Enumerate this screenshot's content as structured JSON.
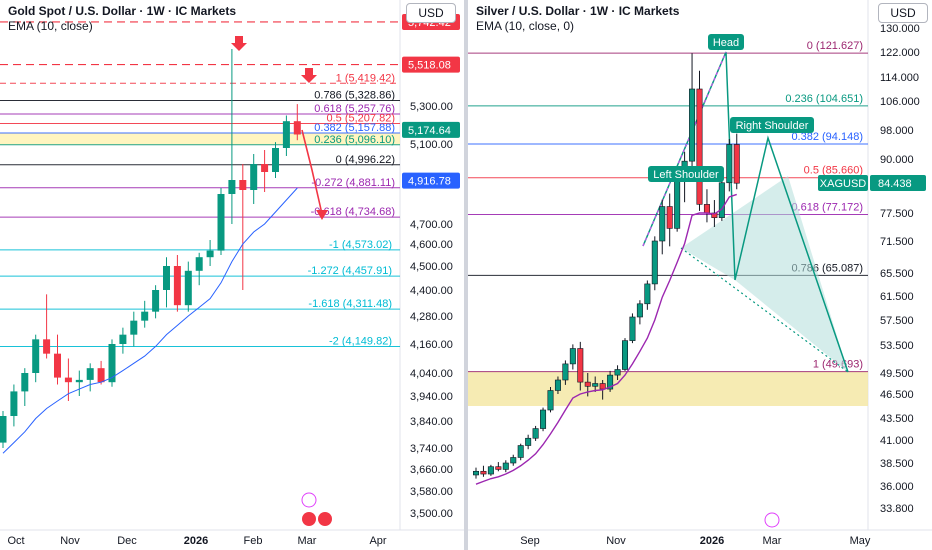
{
  "charts": {
    "gold": {
      "title": "Gold Spot / U.S. Dollar · 1W · IC Markets",
      "indicator": "EMA (10, close)",
      "currency": "USD",
      "axis_ticks": [
        "5,300.00",
        "5,100.00",
        "4,700.00",
        "4,600.00",
        "4,500.00",
        "4,400.00",
        "4,280.00",
        "4,160.00",
        "4,040.00",
        "3,940.00",
        "3,840.00",
        "3,740.00",
        "3,660.00",
        "3,580.00",
        "3,500.00"
      ],
      "x_labels": [
        "Oct",
        "Nov",
        "Dec",
        "2026",
        "Feb",
        "Mar",
        "Apr"
      ],
      "price_tags": [
        {
          "label": "5,742.42",
          "color": "#f23645",
          "v": 5742.42
        },
        {
          "label": "5,518.08",
          "color": "#f23645",
          "v": 5518.08
        },
        {
          "label": "5,174.64",
          "color": "#089981",
          "v": 5174.64
        },
        {
          "label": "4,916.78",
          "color": "#2962ff",
          "v": 4916.78
        }
      ],
      "fib_labels": [
        {
          "text": "1 (5,419.42)",
          "color": "#f23645",
          "v": 5419.42
        },
        {
          "text": "0.786 (5,328.86)",
          "color": "#131722",
          "v": 5328.86
        },
        {
          "text": "0.618 (5,257.76)",
          "color": "#9c27b0",
          "v": 5257.76
        },
        {
          "text": "0.5 (5,207.82)",
          "color": "#f23645",
          "v": 5207.82
        },
        {
          "text": "0.382 (5,157.88)",
          "color": "#2962ff",
          "v": 5157.88
        },
        {
          "text": "0.236 (5,096.10)",
          "color": "#089981",
          "v": 5096.1
        },
        {
          "text": "0 (4,996.22)",
          "color": "#131722",
          "v": 4996.22
        },
        {
          "text": "-0.272 (4,881.11)",
          "color": "#9c27b0",
          "v": 4881.11
        },
        {
          "text": "-0.618 (4,734.68)",
          "color": "#9c27b0",
          "v": 4734.68
        },
        {
          "text": "-1 (4,573.02)",
          "color": "#00bcd4",
          "v": 4573.02
        },
        {
          "text": "-1.272 (4,457.91)",
          "color": "#00bcd4",
          "v": 4457.91
        },
        {
          "text": "-1.618 (4,311.48)",
          "color": "#00bcd4",
          "v": 4311.48
        },
        {
          "text": "-2 (4,149.82)",
          "color": "#00bcd4",
          "v": 4149.82
        }
      ]
    },
    "silver": {
      "title": "Silver / U.S. Dollar · 1W · IC Markets",
      "indicator": "EMA (10, close, 0)",
      "currency": "USD",
      "axis_ticks": [
        "130.000",
        "122.000",
        "114.000",
        "106.000",
        "98.000",
        "90.000",
        "77.500",
        "71.500",
        "65.500",
        "61.500",
        "57.500",
        "53.500",
        "49.500",
        "46.500",
        "43.500",
        "41.000",
        "38.500",
        "36.000",
        "33.800"
      ],
      "x_labels": [
        "Sep",
        "Nov",
        "2026",
        "Mar",
        "May"
      ],
      "price_tag": {
        "label": "84.438",
        "symbol": "XAGUSD",
        "color": "#089981",
        "v": 84.438
      },
      "pattern_labels": {
        "head": "Head",
        "left": "Left Shoulder",
        "right": "Right Shoulder"
      },
      "fib_labels": [
        {
          "text": "0 (121.627)",
          "color": "#9c2770",
          "v": 121.627
        },
        {
          "text": "0.236 (104.651)",
          "color": "#089981",
          "v": 104.651
        },
        {
          "text": "0.382 (94.148)",
          "color": "#2962ff",
          "v": 94.148
        },
        {
          "text": "0.5 (85.660)",
          "color": "#f23645",
          "v": 85.66
        },
        {
          "text": "0.618 (77.172)",
          "color": "#9c27b0",
          "v": 77.172
        },
        {
          "text": "0.786 (65.087)",
          "color": "#131722",
          "v": 65.087
        },
        {
          "text": "1 (49.693)",
          "color": "#9c2770",
          "v": 49.693
        }
      ]
    }
  },
  "chart_data": [
    {
      "type": "candlestick",
      "title": "Gold Spot / U.S. Dollar · 1W · IC Markets",
      "indicator": "EMA (10, close)",
      "candles": [
        [
          3760,
          3880,
          3740,
          3860
        ],
        [
          3860,
          3990,
          3820,
          3960
        ],
        [
          3960,
          4060,
          3900,
          4040
        ],
        [
          4040,
          4200,
          4000,
          4180
        ],
        [
          4180,
          4380,
          4100,
          4120
        ],
        [
          4120,
          4200,
          3990,
          4020
        ],
        [
          4020,
          4100,
          3920,
          4000
        ],
        [
          4000,
          4050,
          3940,
          4010
        ],
        [
          4010,
          4080,
          3960,
          4060
        ],
        [
          4060,
          4090,
          3990,
          4000
        ],
        [
          4000,
          4180,
          3980,
          4160
        ],
        [
          4160,
          4230,
          4120,
          4200
        ],
        [
          4200,
          4300,
          4150,
          4260
        ],
        [
          4260,
          4350,
          4230,
          4300
        ],
        [
          4300,
          4420,
          4270,
          4400
        ],
        [
          4400,
          4540,
          4320,
          4500
        ],
        [
          4500,
          4550,
          4300,
          4330
        ],
        [
          4330,
          4520,
          4300,
          4480
        ],
        [
          4480,
          4560,
          4420,
          4540
        ],
        [
          4540,
          4620,
          4500,
          4570
        ],
        [
          4570,
          4880,
          4550,
          4850
        ],
        [
          4850,
          5600,
          4700,
          4920
        ],
        [
          4920,
          5000,
          4400,
          4870
        ],
        [
          4870,
          5050,
          4800,
          5000
        ],
        [
          5000,
          5070,
          4860,
          4960
        ],
        [
          4960,
          5110,
          4930,
          5080
        ],
        [
          5080,
          5250,
          5040,
          5220
        ],
        [
          5220,
          5310,
          5120,
          5150
        ]
      ],
      "ema": [
        3720,
        3760,
        3800,
        3850,
        3890,
        3920,
        3950,
        3970,
        3990,
        4000,
        4020,
        4050,
        4080,
        4110,
        4150,
        4200,
        4240,
        4280,
        4320,
        4360,
        4430,
        4520,
        4600,
        4660,
        4700,
        4760,
        4820,
        4880
      ]
    },
    {
      "type": "candlestick",
      "title": "Silver / U.S. Dollar · 1W · IC Markets",
      "indicator": "EMA (10, close, 0)",
      "candles": [
        [
          37.2,
          38.0,
          36.8,
          37.6
        ],
        [
          37.6,
          38.2,
          37.0,
          37.3
        ],
        [
          37.3,
          38.3,
          37.1,
          38.1
        ],
        [
          38.1,
          38.6,
          37.6,
          37.8
        ],
        [
          37.8,
          38.8,
          37.5,
          38.5
        ],
        [
          38.5,
          39.4,
          38.2,
          39.1
        ],
        [
          39.1,
          40.6,
          38.8,
          40.4
        ],
        [
          40.4,
          41.6,
          40.0,
          41.2
        ],
        [
          41.2,
          42.6,
          40.9,
          42.3
        ],
        [
          42.3,
          44.8,
          42.0,
          44.5
        ],
        [
          44.5,
          47.5,
          44.2,
          47.0
        ],
        [
          47.0,
          49.0,
          46.5,
          48.5
        ],
        [
          48.5,
          51.3,
          47.8,
          50.8
        ],
        [
          50.8,
          53.6,
          50.0,
          53.0
        ],
        [
          53.0,
          54.0,
          47.0,
          48.2
        ],
        [
          48.2,
          49.5,
          46.2,
          47.6
        ],
        [
          47.6,
          49.0,
          46.8,
          48.0
        ],
        [
          48.0,
          48.5,
          45.8,
          47.2
        ],
        [
          47.2,
          49.8,
          46.8,
          49.2
        ],
        [
          49.2,
          50.6,
          48.5,
          50.0
        ],
        [
          50.0,
          54.6,
          49.8,
          54.2
        ],
        [
          54.2,
          58.6,
          53.8,
          58.0
        ],
        [
          58.0,
          60.8,
          56.8,
          60.2
        ],
        [
          60.2,
          64.2,
          59.2,
          63.6
        ],
        [
          63.6,
          72.5,
          62.5,
          71.5
        ],
        [
          71.5,
          80.6,
          69.0,
          79.0
        ],
        [
          79.0,
          82.0,
          70.5,
          74.2
        ],
        [
          74.2,
          86.5,
          73.5,
          85.4
        ],
        [
          85.4,
          92.0,
          80.0,
          89.5
        ],
        [
          89.5,
          121.6,
          86.0,
          110.0
        ],
        [
          110.0,
          116.0,
          78.0,
          79.5
        ],
        [
          79.5,
          83.0,
          75.5,
          77.5
        ],
        [
          77.5,
          80.5,
          74.5,
          76.5
        ],
        [
          76.5,
          86.0,
          75.8,
          84.5
        ],
        [
          84.5,
          95.5,
          82.5,
          94.0
        ],
        [
          94.0,
          97.0,
          83.0,
          84.4
        ]
      ],
      "ema": [
        36.2,
        36.5,
        36.8,
        37.0,
        37.3,
        37.7,
        38.2,
        38.8,
        39.5,
        40.5,
        41.7,
        43.0,
        44.5,
        46.0,
        46.5,
        46.8,
        47.0,
        47.1,
        47.5,
        48.0,
        49.2,
        50.8,
        52.6,
        54.6,
        57.5,
        61.3,
        64.2,
        67.5,
        71.0,
        77.0,
        77.5,
        77.5,
        77.3,
        78.4,
        81.2,
        81.8
      ]
    }
  ]
}
